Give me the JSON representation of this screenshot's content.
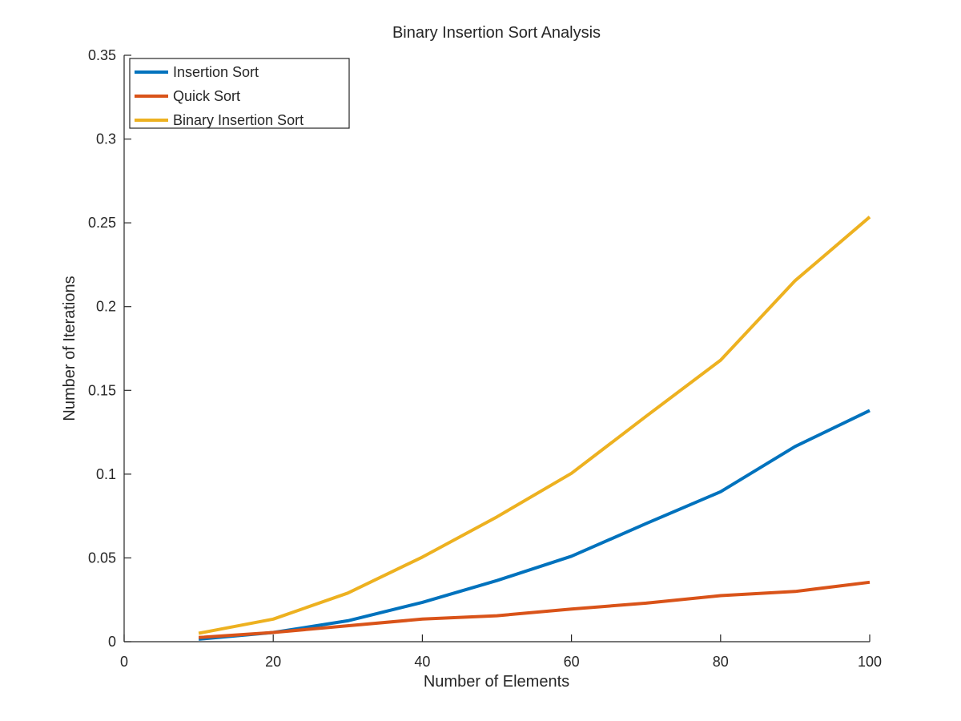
{
  "chart_data": {
    "type": "line",
    "title": "Binary Insertion Sort Analysis",
    "xlabel": "Number of Elements",
    "ylabel": "Number of Iterations",
    "xlim": [
      0,
      100
    ],
    "ylim": [
      0,
      0.35
    ],
    "xticks": [
      0,
      20,
      40,
      60,
      80,
      100
    ],
    "yticks": [
      0,
      0.05,
      0.1,
      0.15,
      0.2,
      0.25,
      0.3,
      0.35
    ],
    "xtick_labels": [
      "0",
      "20",
      "40",
      "60",
      "80",
      "100"
    ],
    "ytick_labels": [
      "0",
      "0.05",
      "0.1",
      "0.15",
      "0.2",
      "0.25",
      "0.3",
      "0.35"
    ],
    "grid": false,
    "legend_position": "top-left",
    "x": [
      10,
      20,
      30,
      40,
      50,
      60,
      70,
      80,
      90,
      100
    ],
    "series": [
      {
        "name": "Insertion Sort",
        "color": "#0072BD",
        "values": [
          0.0015,
          0.0055,
          0.0125,
          0.0235,
          0.0365,
          0.051,
          0.0705,
          0.0895,
          0.1165,
          0.138
        ]
      },
      {
        "name": "Quick Sort",
        "color": "#D95319",
        "values": [
          0.0025,
          0.0055,
          0.0095,
          0.0135,
          0.0155,
          0.0195,
          0.023,
          0.0275,
          0.03,
          0.0355
        ]
      },
      {
        "name": "Binary Insertion Sort",
        "color": "#EDB120",
        "values": [
          0.005,
          0.0135,
          0.029,
          0.0505,
          0.0745,
          0.1005,
          0.1345,
          0.168,
          0.2155,
          0.2535
        ]
      }
    ]
  }
}
